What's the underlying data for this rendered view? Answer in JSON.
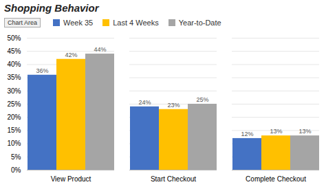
{
  "chart_data": {
    "type": "bar",
    "title": "Shopping Behavior",
    "categories": [
      "View Product",
      "Start Checkout",
      "Complete Checkout"
    ],
    "series": [
      {
        "name": "Week 35",
        "color": "#4472C4",
        "values": [
          36,
          24,
          12
        ],
        "value_labels": [
          "36%",
          "24%",
          "12%"
        ]
      },
      {
        "name": "Last 4 Weeks",
        "color": "#FFC000",
        "values": [
          42,
          23,
          13
        ],
        "value_labels": [
          "42%",
          "23%",
          "13%"
        ]
      },
      {
        "name": "Year-to-Date",
        "color": "#A5A5A5",
        "values": [
          44,
          25,
          13
        ],
        "value_labels": [
          "44%",
          "25%",
          "13%"
        ]
      }
    ],
    "ylim": [
      0,
      50
    ],
    "yticks": [
      {
        "value": 0,
        "label": "0%"
      },
      {
        "value": 5,
        "label": "5%"
      },
      {
        "value": 10,
        "label": "10%"
      },
      {
        "value": 15,
        "label": "15%"
      },
      {
        "value": 20,
        "label": "20%"
      },
      {
        "value": 25,
        "label": "25%"
      },
      {
        "value": 30,
        "label": "30%"
      },
      {
        "value": 35,
        "label": "35%"
      },
      {
        "value": 40,
        "label": "40%"
      },
      {
        "value": 45,
        "label": "45%"
      },
      {
        "value": 50,
        "label": "50%"
      }
    ],
    "grid": true,
    "data_labels": true,
    "legend": "top",
    "annotations": [
      "Chart Area"
    ]
  }
}
